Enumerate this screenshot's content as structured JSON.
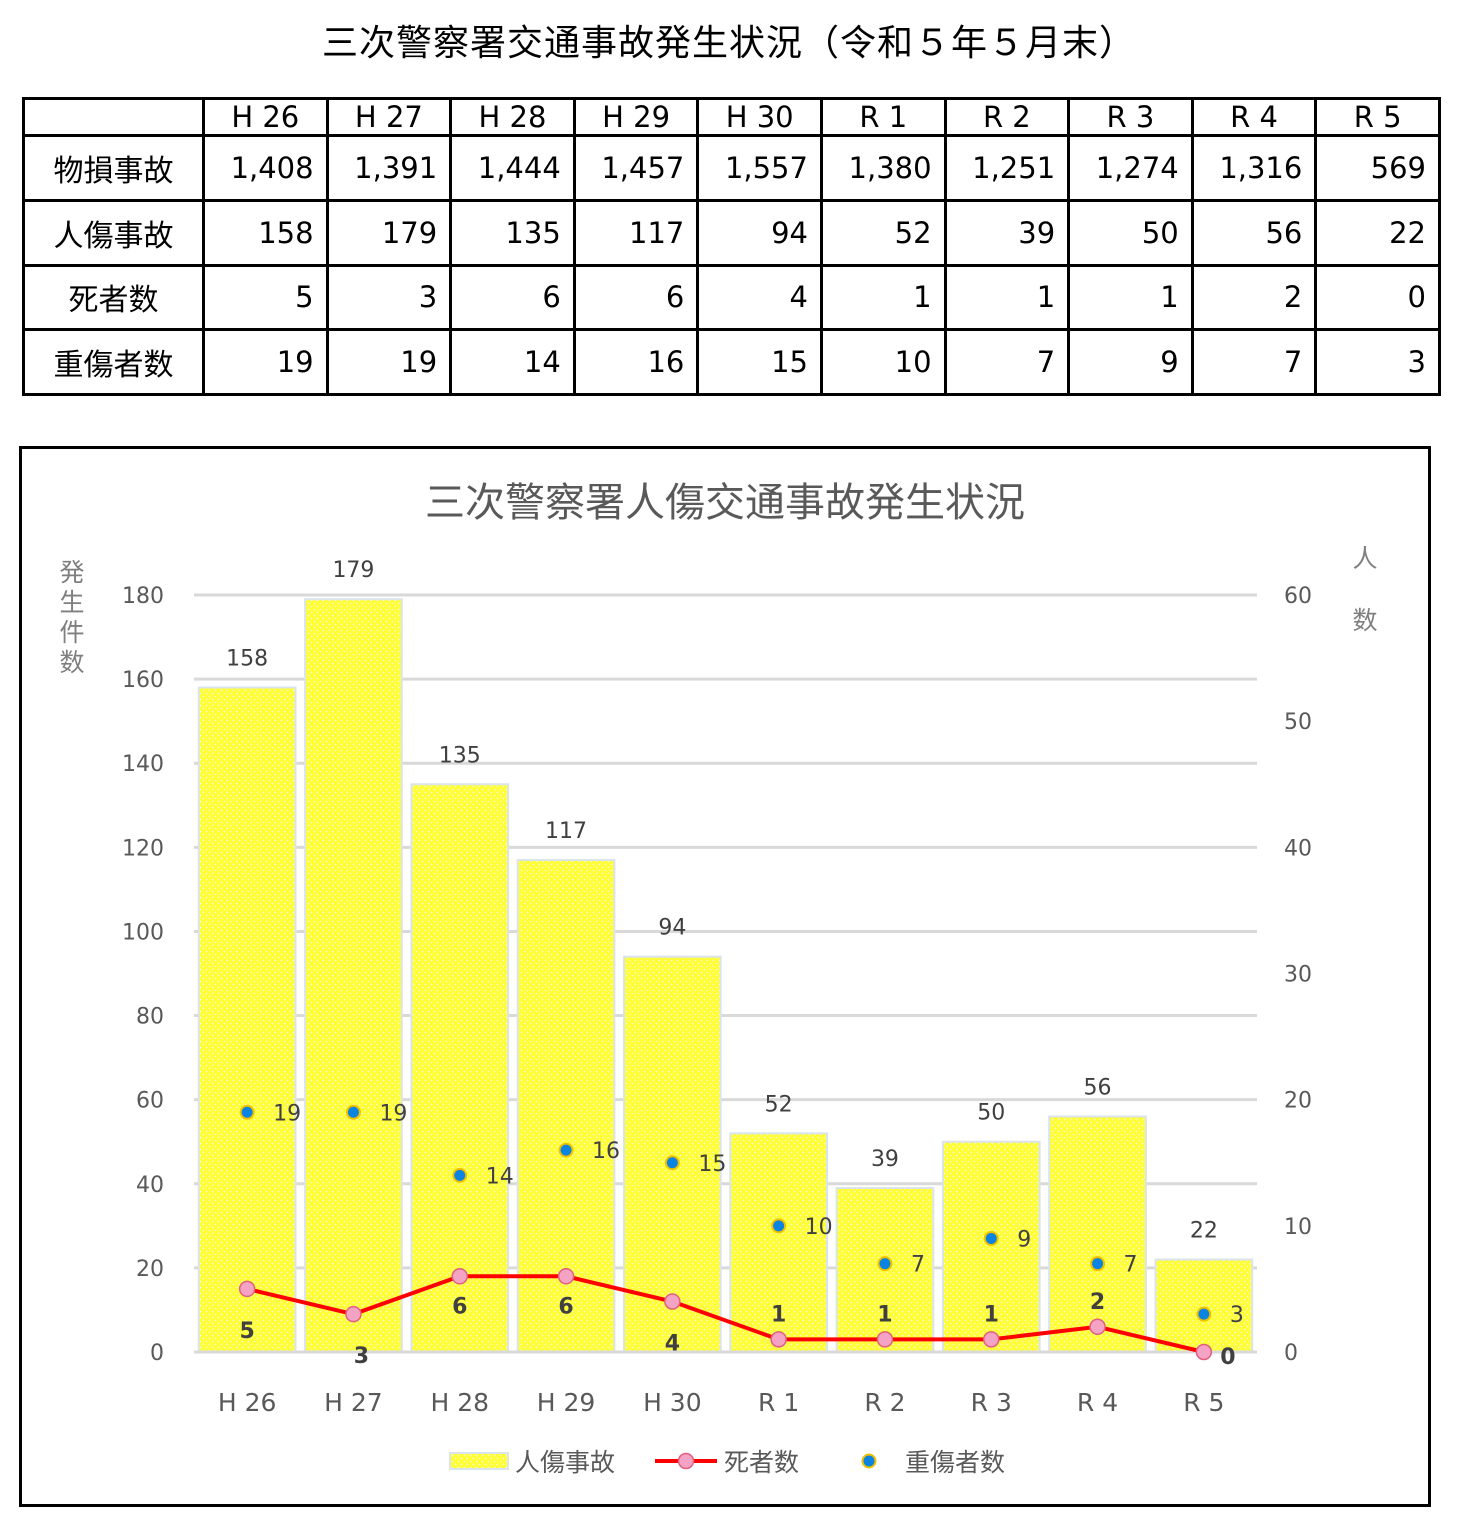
{
  "page_title": "三次警察署交通事故発生状況（令和５年５月末）",
  "table": {
    "columns": [
      "H26",
      "H27",
      "H28",
      "H29",
      "H30",
      "R 1",
      "R 2",
      "R 3",
      "R 4",
      "R 5"
    ],
    "column_labels": [
      "H 26",
      "H 27",
      "H 28",
      "H 29",
      "H 30",
      "R 1",
      "R 2",
      "R 3",
      "R 4",
      "R 5"
    ],
    "rows": [
      {
        "label": "物損事故",
        "values": [
          "1,408",
          "1,391",
          "1,444",
          "1,457",
          "1,557",
          "1,380",
          "1,251",
          "1,274",
          "1,316",
          "569"
        ]
      },
      {
        "label": "人傷事故",
        "values": [
          "158",
          "179",
          "135",
          "117",
          "94",
          "52",
          "39",
          "50",
          "56",
          "22"
        ]
      },
      {
        "label": "死者数",
        "values": [
          "5",
          "3",
          "6",
          "6",
          "4",
          "1",
          "1",
          "1",
          "2",
          "0"
        ]
      },
      {
        "label": "重傷者数",
        "values": [
          "19",
          "19",
          "14",
          "16",
          "15",
          "10",
          "7",
          "9",
          "7",
          "3"
        ]
      }
    ]
  },
  "chart_data": {
    "type": "bar",
    "title": "三次警察署人傷交通事故発生状況",
    "categories": [
      "H 26",
      "H 27",
      "H 28",
      "H 29",
      "H 30",
      "R 1",
      "R 2",
      "R 3",
      "R 4",
      "R 5"
    ],
    "ylabel": "発生件数",
    "ylabel_right": "人数",
    "ylim": [
      0,
      180
    ],
    "yticks": [
      0,
      20,
      40,
      60,
      80,
      100,
      120,
      140,
      160,
      180
    ],
    "ylim_right": [
      0,
      60
    ],
    "yticks_right": [
      0,
      10,
      20,
      30,
      40,
      50,
      60
    ],
    "grid": true,
    "legend": "bottom",
    "series": [
      {
        "name": "人傷事故",
        "type": "bar",
        "axis": "left",
        "color": "#ffff33",
        "values": [
          158,
          179,
          135,
          117,
          94,
          52,
          39,
          50,
          56,
          22
        ]
      },
      {
        "name": "死者数",
        "type": "line",
        "axis": "right",
        "color": "#ff0000",
        "marker_color": "#f4a3c4",
        "values": [
          5,
          3,
          6,
          6,
          4,
          1,
          1,
          1,
          2,
          0
        ]
      },
      {
        "name": "重傷者数",
        "type": "scatter",
        "axis": "right",
        "color": "#0a84e0",
        "marker_edge": "#f2c200",
        "values": [
          19,
          19,
          14,
          16,
          15,
          10,
          7,
          9,
          7,
          3
        ]
      }
    ]
  }
}
